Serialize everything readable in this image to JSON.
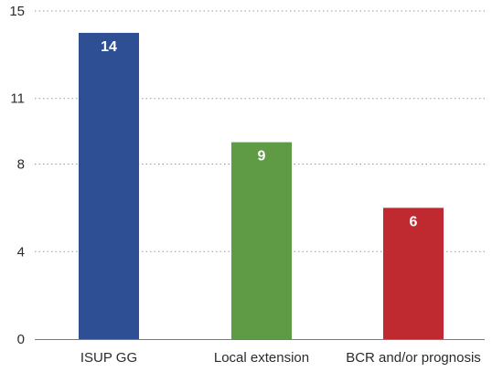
{
  "chart_data": {
    "type": "bar",
    "title": "",
    "xlabel": "",
    "ylabel": "",
    "categories": [
      "ISUP GG",
      "Local extension",
      "BCR and/or prognosis"
    ],
    "values": [
      14,
      9,
      6
    ],
    "data_labels": [
      "14",
      "9",
      "6"
    ],
    "bar_colors": [
      "#2e4f93",
      "#5f9a45",
      "#be2a30"
    ],
    "ylim": [
      0,
      15
    ],
    "yticks": [
      0,
      4,
      8,
      11,
      15
    ],
    "ytick_labels": [
      "0",
      "4",
      "8",
      "11",
      "15"
    ],
    "grid": true,
    "legend": "none"
  }
}
